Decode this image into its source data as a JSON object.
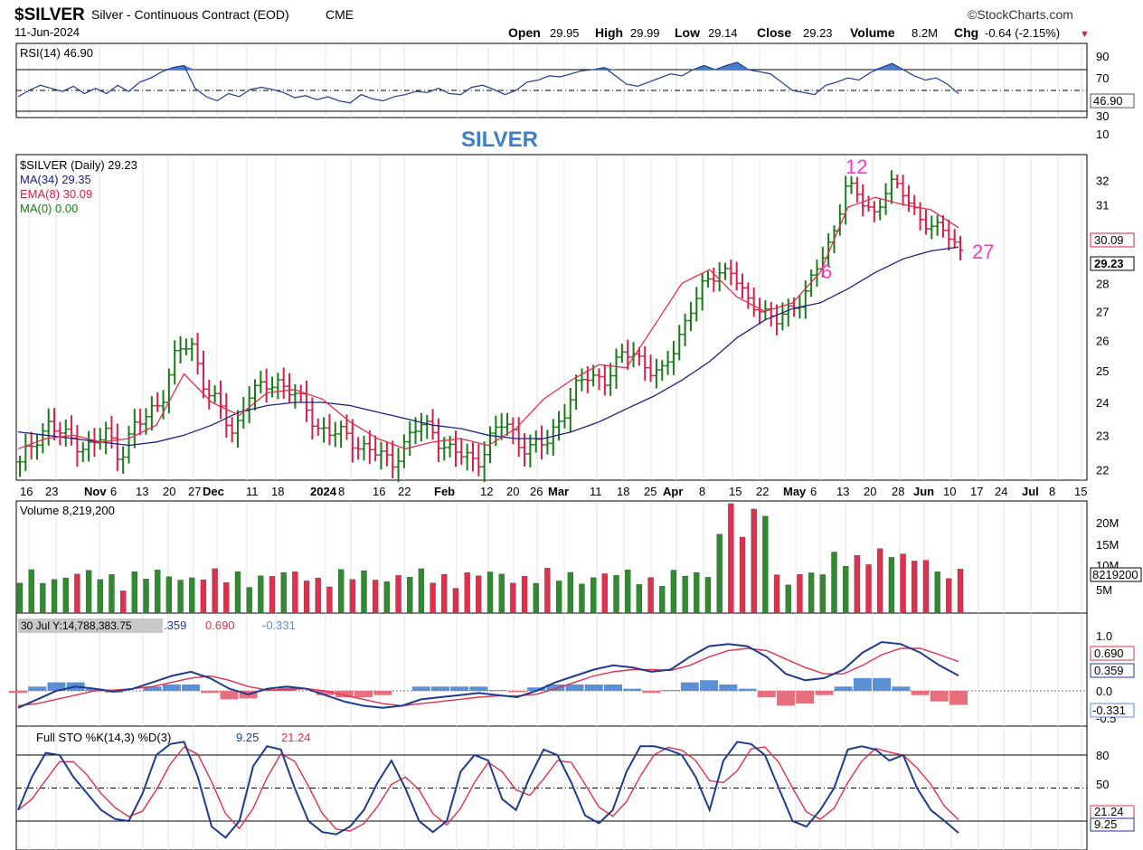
{
  "header": {
    "symbol": "$SILVER",
    "name": "Silver - Continuous Contract (EOD)",
    "exchange": "CME",
    "date": "11-Jun-2024",
    "brand": "©StockCharts.com",
    "open_label": "Open",
    "open": "29.95",
    "high_label": "High",
    "high": "29.99",
    "low_label": "Low",
    "low": "29.14",
    "close_label": "Close",
    "close": "29.23",
    "volume_label": "Volume",
    "volume": "8.2M",
    "chg_label": "Chg",
    "chg": "-0.64 (-2.15%)",
    "chg_arrow": "▼"
  },
  "colors": {
    "up": "#1a7a1a",
    "down": "#d3204a",
    "ma34": "#1a237e",
    "ema8": "#e0304e",
    "rsi_fill": "#4a7fc8",
    "vol_up": "#2e8b2e",
    "vol_down": "#e0304e",
    "macd_line": "#1f3b8c",
    "signal_line": "#e0304e",
    "hist_pos": "#5b8fd6",
    "hist_neg": "#e8707e",
    "pink": "#ff33cc",
    "title_blue": "#3f7fc6"
  },
  "rsi": {
    "legend": "RSI(14) 46.90",
    "value_tag": "46.90",
    "ticks": [
      "90",
      "70",
      "50",
      "30",
      "10"
    ]
  },
  "price": {
    "watermark": "SILVER",
    "legend": [
      "$SILVER (Daily) 29.23",
      "MA(34) 29.35",
      "EMA(8) 30.09",
      "MA(0) 0.00"
    ],
    "ticks": [
      "32",
      "31",
      "30",
      "29",
      "28",
      "27",
      "26",
      "25",
      "24",
      "23",
      "22"
    ],
    "tag_ema": "30.09",
    "tag_close": "29.23",
    "annotations": [
      "12",
      "6",
      "27"
    ]
  },
  "date_axis": {
    "labels": [
      "16",
      "23",
      "Nov",
      "6",
      "13",
      "20",
      "27",
      "Dec",
      "11",
      "18",
      "2024",
      "8",
      "16",
      "22",
      "Feb",
      "12",
      "20",
      "26",
      "Mar",
      "11",
      "18",
      "25",
      "Apr",
      "8",
      "15",
      "22",
      "May",
      "6",
      "13",
      "20",
      "28",
      "Jun",
      "10",
      "17",
      "24",
      "Jul",
      "8",
      "15"
    ]
  },
  "volume": {
    "legend": "Volume 8,219,200",
    "ticks": [
      "20M",
      "15M",
      "10M",
      "5M"
    ],
    "value_tag": "8219200"
  },
  "macd": {
    "legend_tooltip": "30 Jul Y:14,788,383.75",
    "legend_val1": ".359",
    "legend_val2": "0.690",
    "legend_val3": "-0.331",
    "ticks": [
      "1.0",
      "0.5",
      "0.0",
      "-0.5"
    ],
    "tag1": "0.690",
    "tag2": "0.359",
    "tag3": "-0.331"
  },
  "sto": {
    "legend_prefix": "Full STO %K(14,3) %D(3)",
    "k": "9.25",
    "d": "21.24",
    "ticks": [
      "80",
      "50",
      "20"
    ],
    "tag_d": "21.24",
    "tag_k": "9.25"
  },
  "chart_data": {
    "type": "line",
    "title": "$SILVER Silver - Continuous Contract (EOD) CME",
    "x_range": [
      "2023-10-16",
      "2024-06-11"
    ],
    "series": [
      {
        "name": "$SILVER (Daily)",
        "values": [
          22.1,
          22.9,
          23.3,
          23.0,
          22.8,
          22.6,
          23.1,
          22.4,
          23.2,
          23.6,
          24.2,
          25.6,
          25.9,
          24.5,
          23.8,
          23.0,
          24.3,
          24.4,
          24.7,
          24.4,
          23.8,
          23.2,
          23.1,
          22.9,
          22.7,
          22.5,
          22.1,
          22.8,
          23.3,
          23.1,
          22.6,
          22.4,
          22.2,
          22.9,
          23.4,
          22.8,
          22.6,
          22.8,
          23.6,
          24.4,
          24.9,
          24.7,
          25.3,
          25.7,
          25.1,
          24.8,
          25.9,
          27.0,
          27.9,
          28.5,
          28.4,
          27.3,
          27.2,
          26.6,
          27.0,
          27.6,
          28.6,
          29.6,
          32.0,
          31.1,
          30.6,
          32.0,
          31.4,
          30.6,
          30.1,
          29.9,
          29.23
        ]
      },
      {
        "name": "MA(34)",
        "values": [
          23.1,
          23.0,
          22.9,
          22.8,
          22.7,
          22.8,
          23.0,
          23.3,
          23.7,
          23.9,
          24.0,
          24.0,
          23.9,
          23.7,
          23.5,
          23.3,
          23.2,
          23.0,
          22.9,
          22.9,
          23.1,
          23.4,
          23.8,
          24.2,
          24.7,
          25.3,
          26.1,
          26.7,
          27.1,
          27.3,
          27.8,
          28.4,
          28.9,
          29.2,
          29.35
        ]
      },
      {
        "name": "EMA(8)",
        "values": [
          22.6,
          22.9,
          23.0,
          22.8,
          22.9,
          23.3,
          24.9,
          24.0,
          23.6,
          24.3,
          24.4,
          24.1,
          23.4,
          22.9,
          22.6,
          22.8,
          22.9,
          22.7,
          23.2,
          24.1,
          24.7,
          25.2,
          25.1,
          26.5,
          28.0,
          28.5,
          27.5,
          27.0,
          27.3,
          28.4,
          30.9,
          31.3,
          31.0,
          30.8,
          30.09
        ]
      }
    ],
    "annotations": [
      "12",
      "6",
      "27"
    ],
    "y_scale": "log",
    "grid": true
  }
}
